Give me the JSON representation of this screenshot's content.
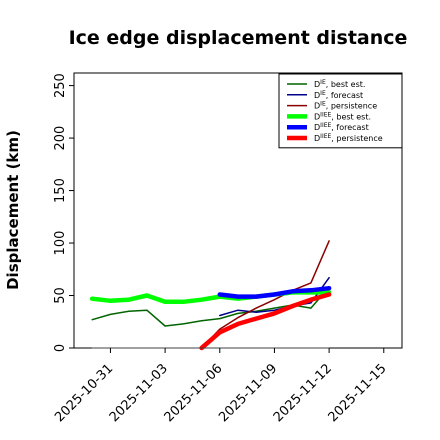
{
  "chart_data": {
    "type": "line",
    "title": "Ice edge displacement distance",
    "xlabel": "",
    "ylabel": "Displacement (km)",
    "ylim": [
      0,
      262
    ],
    "xlim": [
      "2025-10-29",
      "2025-11-16"
    ],
    "y_ticks": [
      0,
      50,
      100,
      150,
      200,
      250
    ],
    "x_ticks": [
      {
        "label": "2025-10-31",
        "color": "#000000"
      },
      {
        "label": "2025-11-03",
        "color": "#000000"
      },
      {
        "label": "2025-11-06",
        "color": "#228b22"
      },
      {
        "label": "2025-11-09",
        "color": "#000000"
      },
      {
        "label": "2025-11-12",
        "color": "#000000"
      },
      {
        "label": "2025-11-15",
        "color": "#000000"
      }
    ],
    "grid": false,
    "legend_position": "top-right",
    "series": [
      {
        "name": "D^IE, best est.",
        "color": "#006400",
        "width": 1.5,
        "x": [
          "2025-10-30",
          "2025-10-31",
          "2025-11-01",
          "2025-11-02",
          "2025-11-03",
          "2025-11-04",
          "2025-11-05",
          "2025-11-06",
          "2025-11-07",
          "2025-11-08",
          "2025-11-09",
          "2025-11-10",
          "2025-11-11",
          "2025-11-12"
        ],
        "y": [
          27,
          32,
          35,
          36,
          21,
          23,
          26,
          28,
          33,
          35,
          38,
          41,
          38,
          58
        ]
      },
      {
        "name": "D^IE, forecast",
        "color": "#00008b",
        "width": 1.5,
        "x": [
          "2025-11-06",
          "2025-11-07",
          "2025-11-08",
          "2025-11-09",
          "2025-11-10",
          "2025-11-11",
          "2025-11-12"
        ],
        "y": [
          31,
          36,
          34,
          36,
          40,
          43,
          67
        ]
      },
      {
        "name": "D^IE, persistence",
        "color": "#8b0000",
        "width": 1.5,
        "x": [
          "2025-11-05",
          "2025-11-06",
          "2025-11-07",
          "2025-11-08",
          "2025-11-09",
          "2025-11-10",
          "2025-11-11",
          "2025-11-12"
        ],
        "y": [
          0,
          18,
          29,
          38,
          46,
          55,
          62,
          102
        ]
      },
      {
        "name": "D^IIEE, best est.",
        "color": "#00ff00",
        "width": 4.5,
        "x": [
          "2025-10-30",
          "2025-10-31",
          "2025-11-01",
          "2025-11-02",
          "2025-11-03",
          "2025-11-04",
          "2025-11-05",
          "2025-11-06",
          "2025-11-07",
          "2025-11-08",
          "2025-11-09",
          "2025-11-10",
          "2025-11-11",
          "2025-11-12"
        ],
        "y": [
          47,
          45,
          46,
          50,
          44,
          44,
          46,
          49,
          47,
          49,
          51,
          53,
          53,
          53
        ]
      },
      {
        "name": "D^IIEE, forecast",
        "color": "#0000ff",
        "width": 4.5,
        "x": [
          "2025-11-06",
          "2025-11-07",
          "2025-11-08",
          "2025-11-09",
          "2025-11-10",
          "2025-11-11",
          "2025-11-12"
        ],
        "y": [
          51,
          49,
          49,
          51,
          54,
          55,
          57
        ]
      },
      {
        "name": "D^IIEE, persistence",
        "color": "#ff0000",
        "width": 4.5,
        "x": [
          "2025-11-05",
          "2025-11-06",
          "2025-11-07",
          "2025-11-08",
          "2025-11-09",
          "2025-11-10",
          "2025-11-11",
          "2025-11-12"
        ],
        "y": [
          0,
          15,
          23,
          28,
          33,
          40,
          46,
          51
        ]
      },
      {
        "color": "#404040",
        "width": 1,
        "x": [
          "2025-10-30",
          "2025-11-12"
        ],
        "y": [
          0,
          0
        ]
      }
    ],
    "legend": [
      {
        "label": "D^IE, best est.",
        "color": "#006400",
        "width": 1.5
      },
      {
        "label": "D^IE, forecast",
        "color": "#00008b",
        "width": 1.5
      },
      {
        "label": "D^IE, persistence",
        "color": "#8b0000",
        "width": 1.5
      },
      {
        "label": "D^IIEE, best est.",
        "color": "#00ff00",
        "width": 4.5
      },
      {
        "label": "D^IIEE, forecast",
        "color": "#0000ff",
        "width": 4.5
      },
      {
        "label": "D^IIEE, persistence",
        "color": "#ff0000",
        "width": 4.5
      }
    ]
  }
}
